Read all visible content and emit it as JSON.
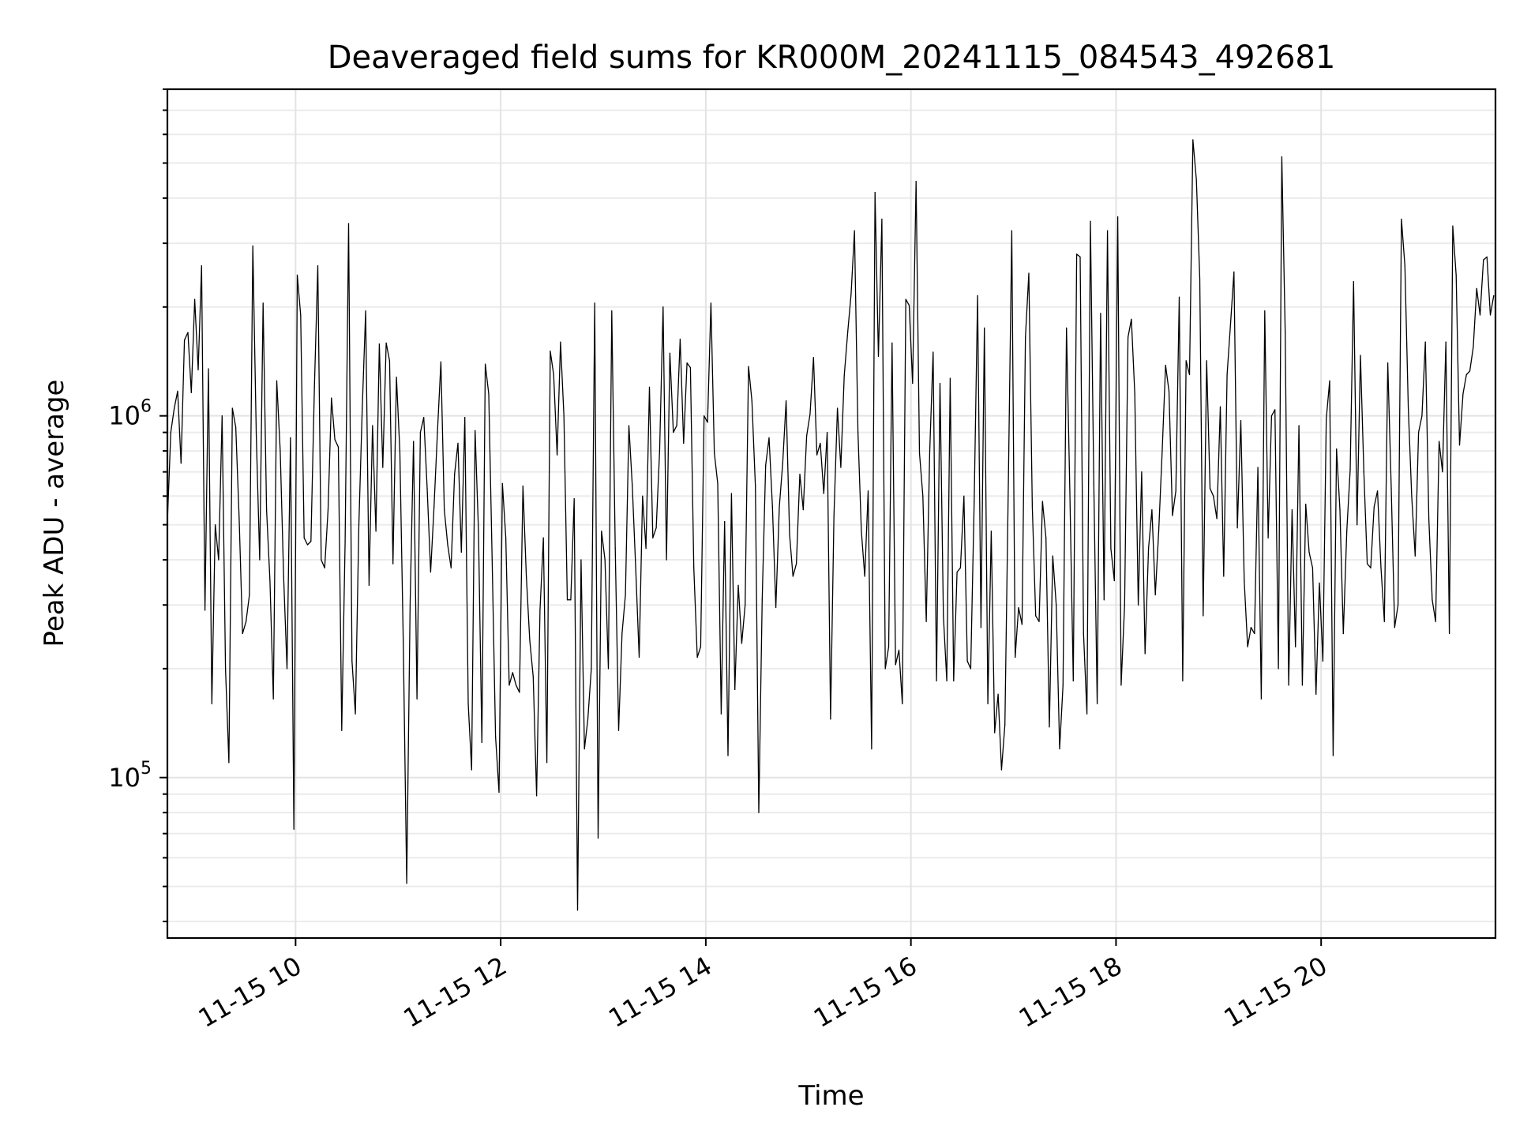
{
  "chart_data": {
    "type": "line",
    "title": "Deaveraged field sums for KR000M_20241115_084543_492681",
    "xlabel": "Time",
    "ylabel": "Peak ADU - average",
    "yscale": "log",
    "ylim": [
      36000,
      8000000
    ],
    "xlim": [
      "2024-11-15 08:45",
      "2024-11-15 21:42"
    ],
    "grid": true,
    "x_ticks": [
      {
        "value": "2024-11-15 10:00",
        "label": "11-15 10"
      },
      {
        "value": "2024-11-15 12:00",
        "label": "11-15 12"
      },
      {
        "value": "2024-11-15 14:00",
        "label": "11-15 14"
      },
      {
        "value": "2024-11-15 16:00",
        "label": "11-15 16"
      },
      {
        "value": "2024-11-15 18:00",
        "label": "11-15 18"
      },
      {
        "value": "2024-11-15 20:00",
        "label": "11-15 20"
      }
    ],
    "y_ticks": [
      {
        "value": 100000,
        "base": "10",
        "exp": "5"
      },
      {
        "value": 1000000,
        "base": "10",
        "exp": "6"
      }
    ],
    "series": [
      {
        "name": "",
        "color": "#000000",
        "start": "2024-11-15 08:45",
        "interval_minutes": 2,
        "values": [
          510000,
          900000,
          1050000,
          1170000,
          740000,
          1620000,
          1700000,
          1160000,
          2100000,
          1340000,
          2600000,
          290000,
          1350000,
          160000,
          500000,
          400000,
          1000000,
          200000,
          110000,
          1050000,
          930000,
          520000,
          250000,
          270000,
          320000,
          2950000,
          880000,
          400000,
          2050000,
          550000,
          350000,
          165000,
          1250000,
          800000,
          360000,
          200000,
          870000,
          72000,
          2450000,
          1900000,
          460000,
          440000,
          450000,
          1200000,
          2600000,
          400000,
          380000,
          550000,
          1120000,
          860000,
          820000,
          135000,
          450000,
          3400000,
          210000,
          150000,
          500000,
          1050000,
          1950000,
          340000,
          940000,
          480000,
          1580000,
          720000,
          1590000,
          1420000,
          390000,
          1280000,
          800000,
          240000,
          51000,
          300000,
          850000,
          165000,
          900000,
          990000,
          630000,
          370000,
          560000,
          900000,
          1410000,
          550000,
          440000,
          380000,
          690000,
          840000,
          420000,
          990000,
          160000,
          105000,
          910000,
          480000,
          125000,
          1390000,
          1150000,
          400000,
          130000,
          91000,
          650000,
          460000,
          180000,
          195000,
          180000,
          172000,
          640000,
          360000,
          240000,
          190000,
          89000,
          290000,
          460000,
          110000,
          1510000,
          1300000,
          780000,
          1600000,
          1000000,
          310000,
          310000,
          590000,
          43000,
          400000,
          120000,
          145000,
          200000,
          2050000,
          68000,
          480000,
          400000,
          200000,
          1950000,
          430000,
          135000,
          250000,
          320000,
          940000,
          640000,
          380000,
          215000,
          600000,
          430000,
          1200000,
          460000,
          490000,
          800000,
          2000000,
          400000,
          1490000,
          900000,
          940000,
          1630000,
          840000,
          1400000,
          1360000,
          380000,
          215000,
          230000,
          1000000,
          960000,
          2050000,
          790000,
          650000,
          150000,
          510000,
          115000,
          610000,
          175000,
          340000,
          235000,
          300000,
          1370000,
          1100000,
          640000,
          80000,
          310000,
          730000,
          870000,
          560000,
          295000,
          560000,
          740000,
          1100000,
          470000,
          360000,
          390000,
          690000,
          550000,
          880000,
          1010000,
          1450000,
          780000,
          840000,
          610000,
          900000,
          145000,
          530000,
          1050000,
          720000,
          1290000,
          1700000,
          2170000,
          3250000,
          900000,
          480000,
          360000,
          620000,
          120000,
          4150000,
          1460000,
          3500000,
          200000,
          230000,
          1590000,
          205000,
          225000,
          160000,
          2100000,
          2020000,
          1230000,
          4450000,
          790000,
          600000,
          270000,
          800000,
          1500000,
          185000,
          1230000,
          280000,
          185000,
          1270000,
          185000,
          370000,
          380000,
          600000,
          210000,
          200000,
          580000,
          2150000,
          260000,
          1750000,
          160000,
          480000,
          133000,
          170000,
          105000,
          140000,
          660000,
          3250000,
          215000,
          295000,
          265000,
          1650000,
          2480000,
          560000,
          280000,
          270000,
          580000,
          460000,
          138000,
          410000,
          300000,
          120000,
          180000,
          1750000,
          610000,
          185000,
          2800000,
          2750000,
          250000,
          150000,
          3450000,
          650000,
          160000,
          1920000,
          310000,
          3250000,
          430000,
          350000,
          3550000,
          180000,
          300000,
          1650000,
          1850000,
          1150000,
          300000,
          700000,
          220000,
          430000,
          550000,
          320000,
          480000,
          800000,
          1380000,
          1170000,
          530000,
          620000,
          2130000,
          185000,
          1420000,
          1300000,
          5800000,
          4500000,
          2400000,
          280000,
          1420000,
          630000,
          600000,
          520000,
          1060000,
          360000,
          1300000,
          1800000,
          2500000,
          490000,
          970000,
          350000,
          230000,
          260000,
          250000,
          720000,
          165000,
          1950000,
          460000,
          1000000,
          1040000,
          200000,
          5200000,
          1700000,
          180000,
          550000,
          230000,
          940000,
          180000,
          570000,
          420000,
          380000,
          170000,
          345000,
          210000,
          980000,
          1250000,
          115000,
          810000,
          550000,
          250000,
          480000,
          710000,
          2350000,
          500000,
          1470000,
          700000,
          390000,
          380000,
          560000,
          620000,
          380000,
          270000,
          1400000,
          630000,
          260000,
          300000,
          3500000,
          2600000,
          1050000,
          600000,
          410000,
          900000,
          1000000,
          1600000,
          520000,
          310000,
          270000,
          850000,
          700000,
          1600000,
          250000,
          3350000,
          2450000,
          830000,
          1150000,
          1300000,
          1330000,
          1550000,
          2250000,
          1900000,
          2700000,
          2750000,
          1900000,
          2150000
        ]
      }
    ]
  }
}
